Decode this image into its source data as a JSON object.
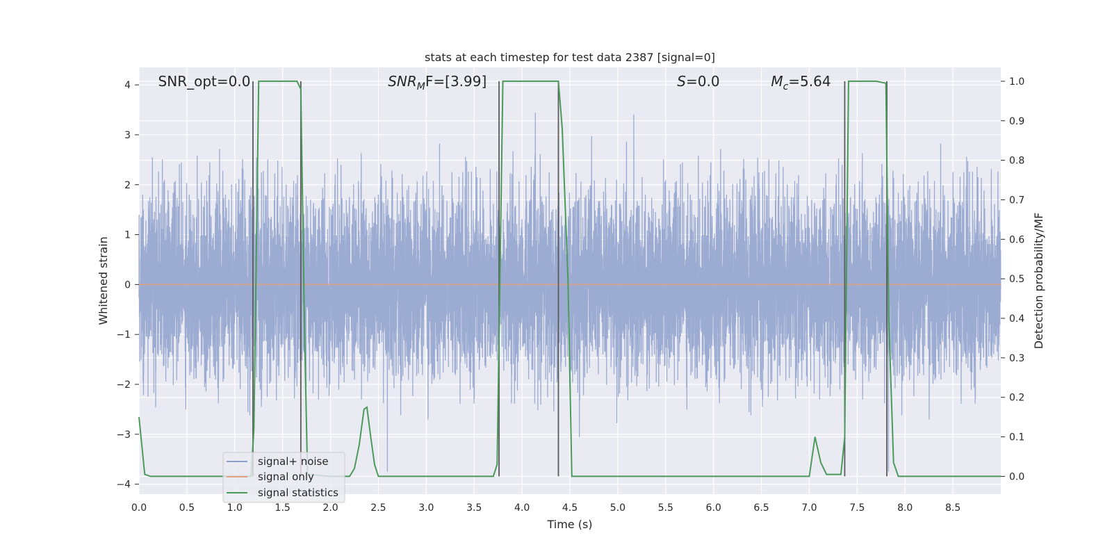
{
  "chart_data": {
    "type": "line",
    "title": "stats at each timestep for test data 2387 [signal=0]",
    "xlabel": "Time (s)",
    "ylabel": "Whitened strain",
    "ylabel_right": "Detection probability/MF",
    "xlim": [
      0,
      9.0
    ],
    "ylim": [
      -4.2,
      4.35
    ],
    "ylim_right": [
      -0.045,
      1.035
    ],
    "xticks": [
      0.0,
      0.5,
      1.0,
      1.5,
      2.0,
      2.5,
      3.0,
      3.5,
      4.0,
      4.5,
      5.0,
      5.5,
      6.0,
      6.5,
      7.0,
      7.5,
      8.0,
      8.5
    ],
    "xtick_labels": [
      "0.0",
      "0.5",
      "1.0",
      "1.5",
      "2.0",
      "2.5",
      "3.0",
      "3.5",
      "4.0",
      "4.5",
      "5.0",
      "5.5",
      "6.0",
      "6.5",
      "7.0",
      "7.5",
      "8.0",
      "8.5"
    ],
    "yticks": [
      4,
      3,
      2,
      1,
      0,
      -1,
      -2,
      -3,
      -4
    ],
    "ytick_labels": [
      "4",
      "3",
      "2",
      "1",
      "0",
      "−1",
      "−2",
      "−3",
      "−4"
    ],
    "yticks_right": [
      1.0,
      0.9,
      0.8,
      0.7,
      0.6,
      0.5,
      0.4,
      0.3,
      0.2,
      0.1,
      0.0
    ],
    "ytick_labels_right": [
      "1.0",
      "0.9",
      "0.8",
      "0.7",
      "0.6",
      "0.5",
      "0.4",
      "0.3",
      "0.2",
      "0.1",
      "0.0"
    ],
    "grid": true,
    "legend_position": "lower-left",
    "legend": [
      {
        "label": "signal+ noise",
        "color": "#8da0cb"
      },
      {
        "label": "signal only",
        "color": "#e5a07d"
      },
      {
        "label": "signal statistics",
        "color": "#4c9a5b"
      }
    ],
    "annotations": [
      {
        "text": "SNR_opt=0.0",
        "x": 0.2
      },
      {
        "text_main": "SNR",
        "text_sub": "M",
        "text_tail": "F=[3.99]",
        "x": 2.6
      },
      {
        "text_main": "S",
        "text_tail": "=0.0",
        "x": 5.62
      },
      {
        "text_main": "M",
        "text_sub": "c",
        "text_tail": "=5.64",
        "x": 6.6
      }
    ],
    "noise": {
      "series": "signal+ noise",
      "duration": 9.0,
      "sample_rate_hz": 1000,
      "std": 0.9,
      "max_value": 4.0,
      "min_value": -3.75
    },
    "signal_only": {
      "series": "signal only",
      "value": 0.0
    },
    "detection_windows": [
      {
        "start": 1.19,
        "end": 1.69
      },
      {
        "start": 3.76,
        "end": 4.38
      },
      {
        "start": 7.37,
        "end": 7.81
      }
    ],
    "statistics": {
      "series": "signal statistics",
      "x": [
        0.0,
        0.06,
        0.12,
        0.2,
        0.5,
        1.0,
        1.17,
        1.2,
        1.25,
        1.3,
        1.6,
        1.65,
        1.69,
        1.73,
        1.76,
        2.0,
        2.15,
        2.2,
        2.25,
        2.3,
        2.35,
        2.38,
        2.42,
        2.46,
        2.5,
        3.0,
        3.5,
        3.7,
        3.74,
        3.8,
        4.0,
        4.38,
        4.42,
        4.48,
        4.52,
        5.0,
        6.0,
        7.0,
        7.06,
        7.12,
        7.18,
        7.25,
        7.33,
        7.37,
        7.41,
        7.5,
        7.7,
        7.8,
        7.83,
        7.88,
        7.93,
        8.0,
        8.5,
        9.0
      ],
      "y": [
        0.15,
        0.005,
        0.0,
        0.0,
        0.0,
        0.0,
        0.0,
        0.12,
        1.0,
        1.0,
        1.0,
        1.0,
        0.98,
        0.35,
        0.005,
        0.0,
        0.0,
        0.0,
        0.02,
        0.08,
        0.17,
        0.175,
        0.1,
        0.03,
        0.0,
        0.0,
        0.0,
        0.0,
        0.03,
        1.0,
        1.0,
        1.0,
        0.88,
        0.5,
        0.0,
        0.0,
        0.0,
        0.0,
        0.1,
        0.035,
        0.005,
        0.005,
        0.005,
        0.1,
        1.0,
        1.0,
        1.0,
        0.995,
        0.4,
        0.035,
        0.0,
        0.0,
        0.0,
        0.0
      ]
    },
    "colors": {
      "background": "#eaeaf2",
      "grid": "#ffffff",
      "noise": "#8da0cb",
      "signal_only": "#e5a07d",
      "statistics": "#4c9a5b",
      "window_lines": "#5a5a5a"
    }
  }
}
